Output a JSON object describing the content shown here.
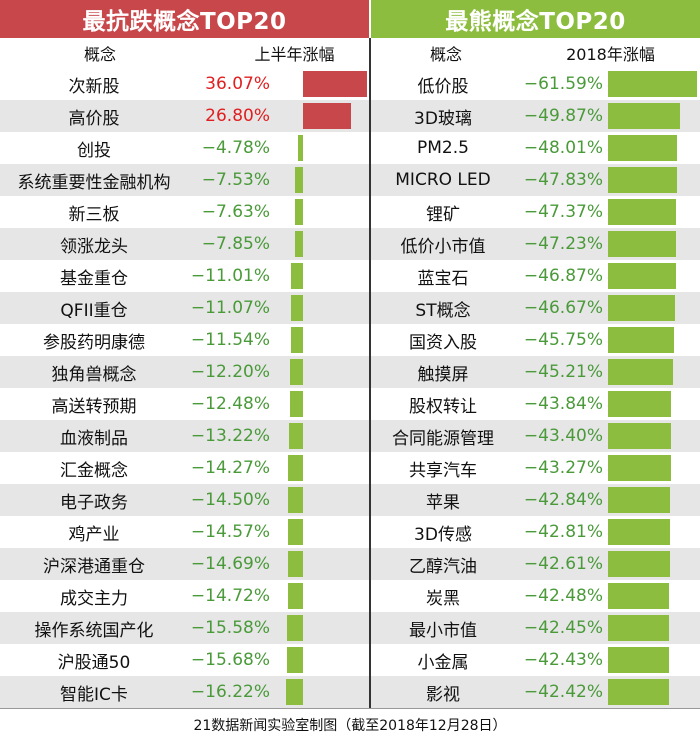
{
  "chart_data": [
    {
      "type": "bar",
      "title": "最抗跌概念TOP20",
      "category_header": "概念",
      "value_header": "上半年涨幅",
      "unit": "%",
      "positive_color": "#c8474a",
      "negative_color": "#8cbd3f",
      "categories": [
        "次新股",
        "高价股",
        "创投",
        "系统重要性金融机构",
        "新三板",
        "领涨龙头",
        "基金重仓",
        "QFII重仓",
        "参股药明康德",
        "独角兽概念",
        "高送转预期",
        "血液制品",
        "汇金概念",
        "电子政务",
        "鸡产业",
        "沪深港通重仓",
        "成交主力",
        "操作系统国产化",
        "沪股通50",
        "智能IC卡"
      ],
      "values": [
        36.07,
        26.8,
        -4.78,
        -7.53,
        -7.63,
        -7.85,
        -11.01,
        -11.07,
        -11.54,
        -12.2,
        -12.48,
        -13.22,
        -14.27,
        -14.5,
        -14.57,
        -14.69,
        -14.72,
        -15.58,
        -15.68,
        -16.22
      ],
      "labels": [
        "36.07%",
        "26.80%",
        "−4.78%",
        "−7.53%",
        "−7.63%",
        "−7.85%",
        "−11.01%",
        "−11.07%",
        "−11.54%",
        "−12.20%",
        "−12.48%",
        "−13.22%",
        "−14.27%",
        "−14.50%",
        "−14.57%",
        "−14.69%",
        "−14.72%",
        "−15.58%",
        "−15.68%",
        "−16.22%"
      ]
    },
    {
      "type": "bar",
      "title": "最熊概念TOP20",
      "category_header": "概念",
      "value_header": "2018年涨幅",
      "unit": "%",
      "negative_color": "#8cbd3f",
      "categories": [
        "低价股",
        "3D玻璃",
        "PM2.5",
        "MICRO LED",
        "锂矿",
        "低价小市值",
        "蓝宝石",
        "ST概念",
        "国资入股",
        "触摸屏",
        "股权转让",
        "合同能源管理",
        "共享汽车",
        "苹果",
        "3D传感",
        "乙醇汽油",
        "炭黑",
        "最小市值",
        "小金属",
        "影视"
      ],
      "values": [
        -61.59,
        -49.87,
        -48.01,
        -47.83,
        -47.37,
        -47.23,
        -46.87,
        -46.67,
        -45.75,
        -45.21,
        -43.84,
        -43.4,
        -43.27,
        -42.84,
        -42.81,
        -42.61,
        -42.48,
        -42.45,
        -42.43,
        -42.42
      ],
      "labels": [
        "−61.59%",
        "−49.87%",
        "−48.01%",
        "−47.83%",
        "−47.37%",
        "−47.23%",
        "−46.87%",
        "−46.67%",
        "−45.75%",
        "−45.21%",
        "−43.84%",
        "−43.40%",
        "−43.27%",
        "−42.84%",
        "−42.81%",
        "−42.61%",
        "−42.48%",
        "−42.45%",
        "−42.43%",
        "−42.42%"
      ]
    }
  ],
  "footer": "21数据新闻实验室制图（截至2018年12月28日）",
  "colors": {
    "text": "#111111",
    "positive_text": "#e02020",
    "negative_text": "#4a9a3a",
    "shade": "#e6e6e6"
  }
}
